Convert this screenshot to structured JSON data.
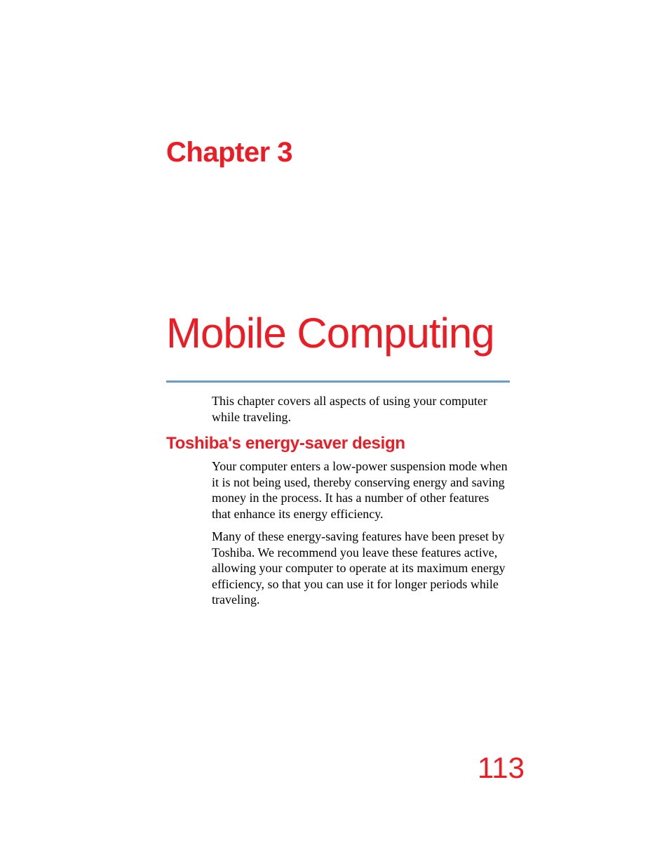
{
  "colors": {
    "accent": "#ed1c24",
    "rule": "#6b9bc0",
    "body_text": "#000000",
    "background": "#ffffff"
  },
  "chapter": {
    "label": "Chapter 3",
    "title": "Mobile Computing",
    "intro": "This chapter covers all aspects of using your computer while traveling."
  },
  "section": {
    "heading": "Toshiba's energy-saver design",
    "para1": "Your computer enters a low-power suspension mode when it is not being used, thereby conserving energy and saving money in the process. It has a number of other features that enhance its energy efficiency.",
    "para2": "Many of these energy-saving features have been preset by Toshiba. We recommend you leave these features active, allowing your computer to operate at its maximum energy efficiency, so that you can use it for longer periods while traveling."
  },
  "page_number": "113",
  "typography": {
    "chapter_label_fontsize": 40,
    "chapter_title_fontsize": 60,
    "section_heading_fontsize": 24,
    "body_fontsize": 18,
    "page_number_fontsize": 42
  }
}
